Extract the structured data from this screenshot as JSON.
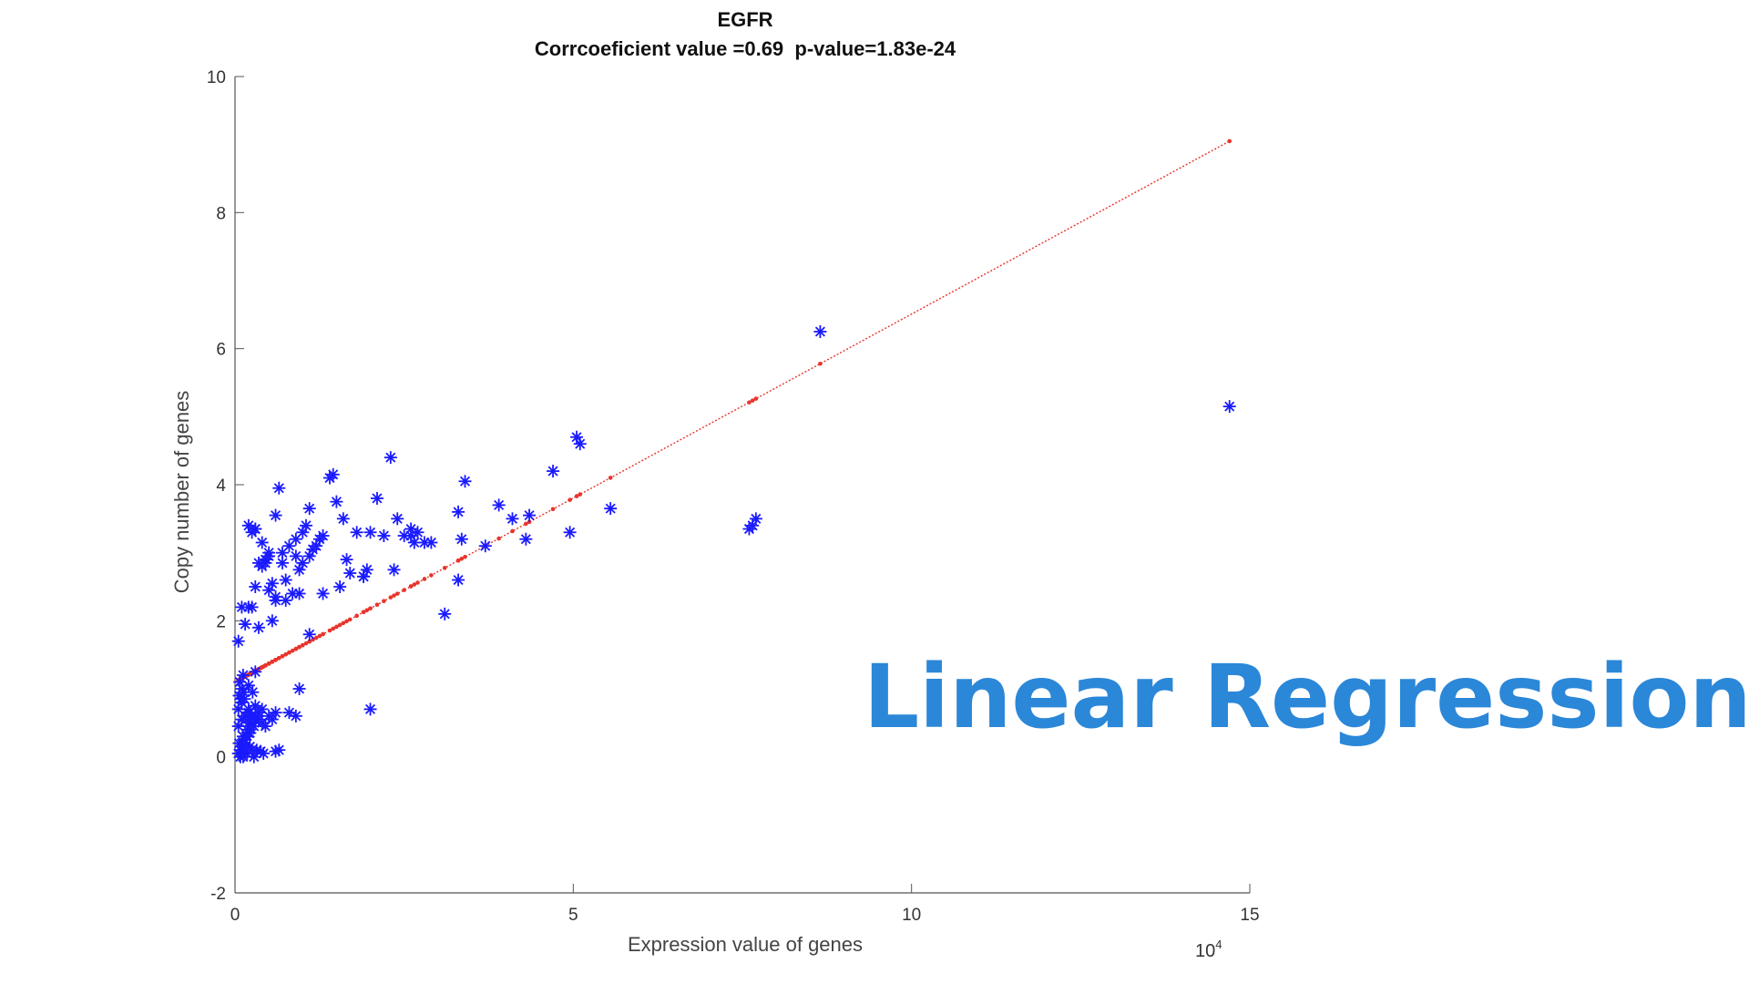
{
  "overlay": {
    "text": "Linear Regression",
    "color": "#2b87d8"
  },
  "chart_data": {
    "type": "scatter",
    "title": "EGFR",
    "subtitle": "Corrcoeficient value =0.69  p-value=1.83e-24",
    "xlabel": "Expression value of genes",
    "ylabel": "Copy number of genes",
    "x_exponent_label": "10",
    "x_exponent_power": "4",
    "xlim": [
      0,
      15
    ],
    "ylim": [
      -2,
      10
    ],
    "xticks": [
      "0",
      "5",
      "10",
      "15"
    ],
    "yticks": [
      "-2",
      "0",
      "2",
      "4",
      "6",
      "8",
      "10"
    ],
    "xtick_values": [
      0,
      5,
      10,
      15
    ],
    "ytick_values": [
      -2,
      0,
      2,
      4,
      6,
      8,
      10
    ],
    "grid": false,
    "marker_color": "#1a1aff",
    "line_color": "#e8342c",
    "series": [
      {
        "kind": "scatter",
        "marker": "asterisk",
        "x": [
          0.05,
          0.08,
          0.1,
          0.12,
          0.15,
          0.18,
          0.2,
          0.22,
          0.25,
          0.28,
          0.3,
          0.05,
          0.1,
          0.15,
          0.2,
          0.25,
          0.3,
          0.35,
          0.4,
          0.45,
          0.5,
          0.55,
          0.08,
          0.12,
          0.18,
          0.22,
          0.28,
          0.32,
          0.38,
          0.42,
          0.06,
          0.1,
          0.14,
          0.2,
          0.26,
          0.3,
          0.35,
          0.4,
          0.07,
          0.12,
          0.16,
          0.22,
          0.3,
          0.06,
          0.11,
          0.15,
          0.2,
          0.25,
          0.05,
          0.1,
          0.15,
          0.2,
          0.09,
          0.13,
          0.18,
          0.6,
          0.9,
          0.95,
          0.65,
          2.0,
          0.05,
          0.1,
          0.2,
          0.3,
          0.35,
          0.15,
          0.25,
          0.4,
          0.5,
          0.6,
          0.6,
          0.65,
          0.7,
          0.8,
          0.9,
          1.0,
          1.05,
          1.1,
          1.15,
          1.2,
          1.0,
          0.95,
          1.1,
          1.25,
          1.3,
          0.5,
          0.45,
          0.55,
          0.7,
          0.75,
          0.85,
          0.35,
          0.4,
          0.3,
          0.25,
          1.4,
          1.45,
          1.5,
          1.6,
          1.65,
          1.7,
          1.8,
          1.9,
          1.95,
          2.0,
          2.1,
          2.2,
          2.3,
          2.4,
          2.5,
          2.6,
          2.65,
          2.7,
          2.8,
          2.9,
          3.1,
          3.3,
          3.35,
          3.4,
          3.3,
          3.7,
          3.9,
          4.1,
          4.3,
          4.35,
          4.7,
          4.95,
          5.05,
          5.1,
          5.55,
          7.6,
          7.65,
          7.7,
          8.65,
          14.7,
          0.55,
          0.6,
          0.75,
          0.5,
          0.45,
          1.3,
          1.55,
          1.9,
          2.35,
          2.6,
          1.1,
          0.95,
          0.9,
          0.3,
          0.2,
          0.1,
          0.12,
          0.6,
          0.8,
          0.25
        ],
        "y": [
          0.05,
          0.1,
          0.2,
          0.3,
          0.15,
          0.4,
          0.5,
          0.35,
          0.6,
          0.45,
          0.55,
          0.7,
          0.8,
          0.25,
          0.65,
          0.5,
          0.6,
          0.55,
          0.5,
          0.45,
          0.6,
          0.55,
          0.0,
          0.1,
          0.05,
          0.15,
          0.0,
          0.1,
          0.08,
          0.05,
          0.9,
          1.0,
          0.85,
          1.05,
          0.95,
          0.75,
          0.65,
          0.7,
          1.1,
          1.2,
          0.3,
          0.4,
          1.25,
          0.2,
          0.15,
          0.25,
          0.35,
          0.1,
          0.45,
          0.55,
          0.6,
          0.7,
          0.85,
          0.95,
          0.6,
          0.65,
          0.6,
          1.0,
          0.1,
          0.7,
          1.7,
          2.2,
          3.4,
          3.35,
          1.9,
          1.95,
          3.3,
          3.15,
          3.0,
          3.55,
          2.3,
          3.95,
          2.85,
          3.1,
          3.2,
          3.3,
          3.4,
          3.65,
          3.05,
          3.1,
          2.85,
          2.75,
          1.8,
          3.2,
          3.25,
          2.95,
          2.9,
          2.55,
          3.0,
          2.6,
          2.4,
          2.85,
          2.8,
          2.5,
          2.2,
          4.1,
          4.15,
          3.75,
          3.5,
          2.9,
          2.7,
          3.3,
          2.65,
          2.75,
          3.3,
          3.8,
          3.25,
          4.4,
          3.5,
          3.25,
          3.35,
          3.15,
          3.3,
          3.15,
          3.15,
          2.1,
          3.6,
          3.2,
          4.05,
          2.6,
          3.1,
          3.7,
          3.5,
          3.2,
          3.55,
          4.2,
          3.3,
          4.7,
          4.6,
          3.65,
          3.35,
          3.4,
          3.5,
          6.25,
          5.15,
          2.0,
          2.35,
          2.3,
          2.45,
          2.85,
          2.4,
          2.5,
          2.65,
          2.75,
          3.25,
          2.95,
          2.4,
          2.95,
          3.35,
          2.2,
          0.05,
          0.0,
          0.08,
          0.65,
          0.6
        ]
      },
      {
        "kind": "line",
        "name": "",
        "x": [
          0,
          14.7
        ],
        "y": [
          1.1,
          9.05
        ]
      }
    ]
  }
}
